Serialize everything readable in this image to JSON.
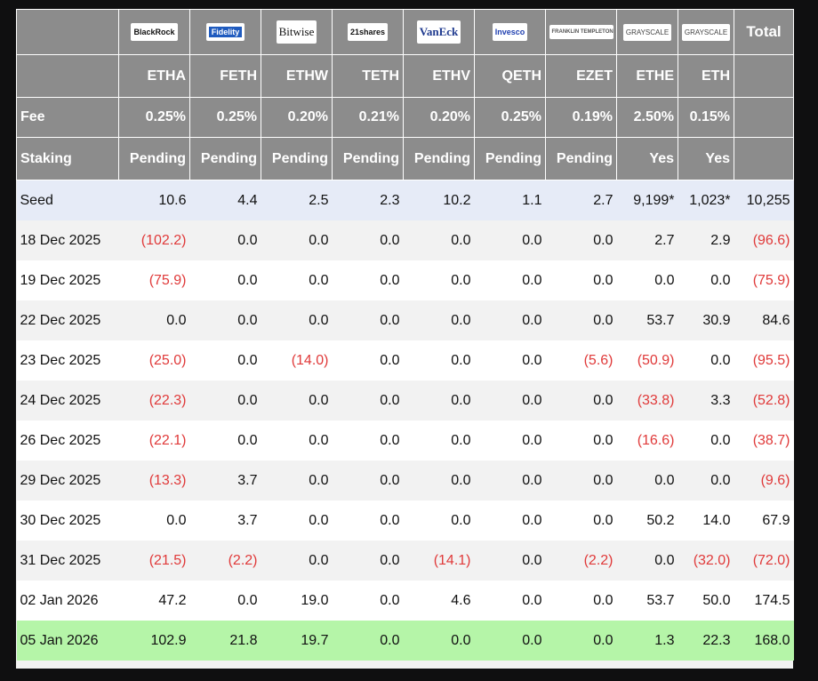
{
  "header": {
    "logos": [
      "BlackRock",
      "Fidelity",
      "Bitwise",
      "21shares",
      "VanEck",
      "Invesco",
      "FRANKLIN TEMPLETON",
      "GRAYSCALE",
      "GRAYSCALE"
    ],
    "tickers": [
      "ETHA",
      "FETH",
      "ETHW",
      "TETH",
      "ETHV",
      "QETH",
      "EZET",
      "ETHE",
      "ETH"
    ],
    "total": "Total"
  },
  "fee": {
    "label": "Fee",
    "values": [
      "0.25%",
      "0.25%",
      "0.20%",
      "0.21%",
      "0.20%",
      "0.25%",
      "0.19%",
      "2.50%",
      "0.15%"
    ]
  },
  "staking": {
    "label": "Staking",
    "values": [
      "Pending",
      "Pending",
      "Pending",
      "Pending",
      "Pending",
      "Pending",
      "Pending",
      "Yes",
      "Yes"
    ]
  },
  "rows": [
    {
      "date": "Seed",
      "values": [
        "10.6",
        "4.4",
        "2.5",
        "2.3",
        "10.2",
        "1.1",
        "2.7",
        "9,199*",
        "1,023*",
        "10,255"
      ]
    },
    {
      "date": "18 Dec 2025",
      "values": [
        "(102.2)",
        "0.0",
        "0.0",
        "0.0",
        "0.0",
        "0.0",
        "0.0",
        "2.7",
        "2.9",
        "(96.6)"
      ]
    },
    {
      "date": "19 Dec 2025",
      "values": [
        "(75.9)",
        "0.0",
        "0.0",
        "0.0",
        "0.0",
        "0.0",
        "0.0",
        "0.0",
        "0.0",
        "(75.9)"
      ]
    },
    {
      "date": "22 Dec 2025",
      "values": [
        "0.0",
        "0.0",
        "0.0",
        "0.0",
        "0.0",
        "0.0",
        "0.0",
        "53.7",
        "30.9",
        "84.6"
      ]
    },
    {
      "date": "23 Dec 2025",
      "values": [
        "(25.0)",
        "0.0",
        "(14.0)",
        "0.0",
        "0.0",
        "0.0",
        "(5.6)",
        "(50.9)",
        "0.0",
        "(95.5)"
      ]
    },
    {
      "date": "24 Dec 2025",
      "values": [
        "(22.3)",
        "0.0",
        "0.0",
        "0.0",
        "0.0",
        "0.0",
        "0.0",
        "(33.8)",
        "3.3",
        "(52.8)"
      ]
    },
    {
      "date": "26 Dec 2025",
      "values": [
        "(22.1)",
        "0.0",
        "0.0",
        "0.0",
        "0.0",
        "0.0",
        "0.0",
        "(16.6)",
        "0.0",
        "(38.7)"
      ]
    },
    {
      "date": "29 Dec 2025",
      "values": [
        "(13.3)",
        "3.7",
        "0.0",
        "0.0",
        "0.0",
        "0.0",
        "0.0",
        "0.0",
        "0.0",
        "(9.6)"
      ]
    },
    {
      "date": "30 Dec 2025",
      "values": [
        "0.0",
        "3.7",
        "0.0",
        "0.0",
        "0.0",
        "0.0",
        "0.0",
        "50.2",
        "14.0",
        "67.9"
      ]
    },
    {
      "date": "31 Dec 2025",
      "values": [
        "(21.5)",
        "(2.2)",
        "0.0",
        "0.0",
        "(14.1)",
        "0.0",
        "(2.2)",
        "0.0",
        "(32.0)",
        "(72.0)"
      ]
    },
    {
      "date": "02 Jan 2026",
      "values": [
        "47.2",
        "0.0",
        "19.0",
        "0.0",
        "4.6",
        "0.0",
        "0.0",
        "53.7",
        "50.0",
        "174.5"
      ]
    },
    {
      "date": "05 Jan 2026",
      "values": [
        "102.9",
        "21.8",
        "19.7",
        "0.0",
        "0.0",
        "0.0",
        "0.0",
        "1.3",
        "22.3",
        "168.0"
      ]
    }
  ]
}
